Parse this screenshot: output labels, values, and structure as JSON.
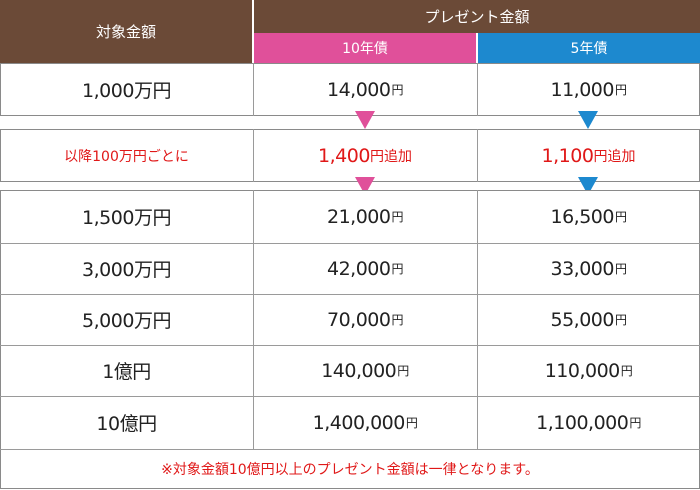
{
  "header": {
    "target_label": "対象金額",
    "present_label": "プレゼント金額",
    "col_10": "10年債",
    "col_5": "5年債"
  },
  "first_row": {
    "target": "1,000万円",
    "v10": "14,000",
    "v5": "11,000"
  },
  "increment": {
    "label": "以降100万円ごとに",
    "v10": "1,400",
    "v5": "1,100",
    "suffix": "追加"
  },
  "unit": "円",
  "rows": [
    {
      "target": "1,500万円",
      "v10": "21,000",
      "v5": "16,500"
    },
    {
      "target": "3,000万円",
      "v10": "42,000",
      "v5": "33,000"
    },
    {
      "target": "5,000万円",
      "v10": "70,000",
      "v5": "55,000"
    },
    {
      "target": "1億円",
      "v10": "140,000",
      "v5": "110,000"
    },
    {
      "target": "10億円",
      "v10": "1,400,000",
      "v5": "1,100,000"
    }
  ],
  "footnote": "※対象金額10億円以上のプレゼント金額は一律となります。",
  "colors": {
    "header": "#6b4a37",
    "ten_year": "#e0509a",
    "five_year": "#1d89cf",
    "accent_text": "#e01818"
  }
}
